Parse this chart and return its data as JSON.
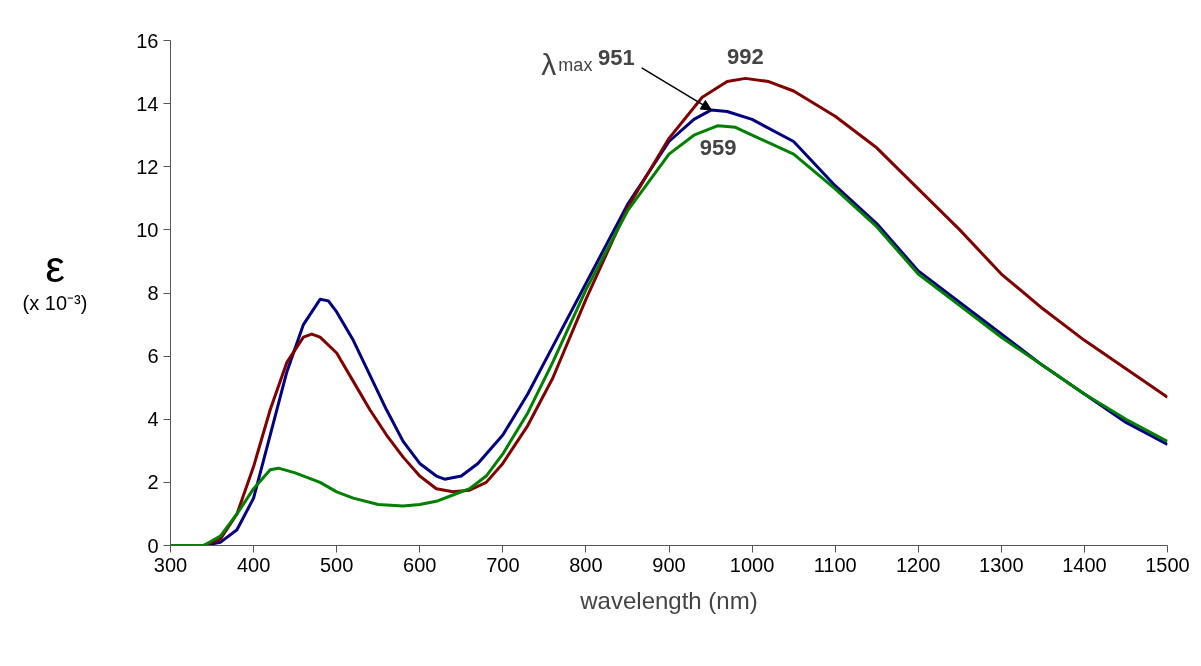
{
  "chart_data": {
    "type": "line",
    "xlabel": "wavelength (nm)",
    "ylabel": "ε (x 10⁻³)",
    "xlim": [
      300,
      1500
    ],
    "xticks": [
      300,
      400,
      500,
      600,
      700,
      800,
      900,
      1000,
      1100,
      1200,
      1300,
      1400,
      1500
    ],
    "ylim": [
      0,
      16
    ],
    "yticks": [
      0,
      2,
      4,
      6,
      8,
      10,
      12,
      14,
      16
    ],
    "grid": false,
    "marker": "none",
    "line_style": "solid",
    "series": [
      {
        "color": "#000080",
        "x": [
          300,
          340,
          360,
          380,
          400,
          420,
          440,
          460,
          480,
          490,
          500,
          520,
          540,
          560,
          580,
          600,
          620,
          630,
          650,
          670,
          700,
          730,
          760,
          800,
          850,
          900,
          930,
          951,
          970,
          1000,
          1050,
          1100,
          1150,
          1200,
          1250,
          1300,
          1350,
          1400,
          1450,
          1500
        ],
        "values": [
          0,
          0,
          0.1,
          0.5,
          1.5,
          3.5,
          5.5,
          7.0,
          7.8,
          7.75,
          7.4,
          6.5,
          5.4,
          4.3,
          3.3,
          2.6,
          2.2,
          2.1,
          2.2,
          2.6,
          3.5,
          4.8,
          6.3,
          8.3,
          10.8,
          12.8,
          13.5,
          13.8,
          13.75,
          13.5,
          12.8,
          11.4,
          10.2,
          8.7,
          7.7,
          6.7,
          5.7,
          4.8,
          3.9,
          3.2
        ]
      },
      {
        "color": "#800000",
        "x": [
          300,
          340,
          360,
          380,
          400,
          420,
          440,
          460,
          470,
          480,
          500,
          520,
          540,
          560,
          580,
          600,
          620,
          640,
          660,
          680,
          700,
          730,
          760,
          800,
          850,
          900,
          940,
          970,
          992,
          1020,
          1050,
          1100,
          1150,
          1200,
          1250,
          1300,
          1350,
          1400,
          1450,
          1500
        ],
        "values": [
          0,
          0,
          0.2,
          1.0,
          2.5,
          4.3,
          5.8,
          6.6,
          6.7,
          6.6,
          6.1,
          5.2,
          4.3,
          3.5,
          2.8,
          2.2,
          1.8,
          1.7,
          1.75,
          2.0,
          2.6,
          3.8,
          5.3,
          7.8,
          10.7,
          12.9,
          14.2,
          14.7,
          14.8,
          14.7,
          14.4,
          13.6,
          12.6,
          11.3,
          10.0,
          8.6,
          7.5,
          6.5,
          5.6,
          4.7
        ]
      },
      {
        "color": "#008000",
        "x": [
          300,
          340,
          360,
          380,
          400,
          420,
          430,
          450,
          480,
          500,
          520,
          550,
          580,
          600,
          620,
          640,
          660,
          680,
          700,
          730,
          760,
          800,
          850,
          900,
          930,
          959,
          980,
          1000,
          1050,
          1100,
          1150,
          1200,
          1250,
          1300,
          1350,
          1400,
          1450,
          1500
        ],
        "values": [
          0,
          0,
          0.3,
          1.0,
          1.8,
          2.4,
          2.45,
          2.3,
          2.0,
          1.7,
          1.5,
          1.3,
          1.25,
          1.3,
          1.4,
          1.6,
          1.8,
          2.2,
          2.9,
          4.2,
          5.8,
          8.1,
          10.6,
          12.4,
          13.0,
          13.3,
          13.25,
          13.0,
          12.4,
          11.3,
          10.1,
          8.6,
          7.6,
          6.6,
          5.7,
          4.8,
          4.0,
          3.3
        ]
      }
    ],
    "annotations": [
      "λ$_{max}$",
      {
        "text": "951",
        "x": 951,
        "y": 13.8
      },
      {
        "text": "992",
        "x": 992,
        "y": 14.8
      },
      {
        "text": "959",
        "x": 959,
        "y": 13.3
      }
    ]
  }
}
